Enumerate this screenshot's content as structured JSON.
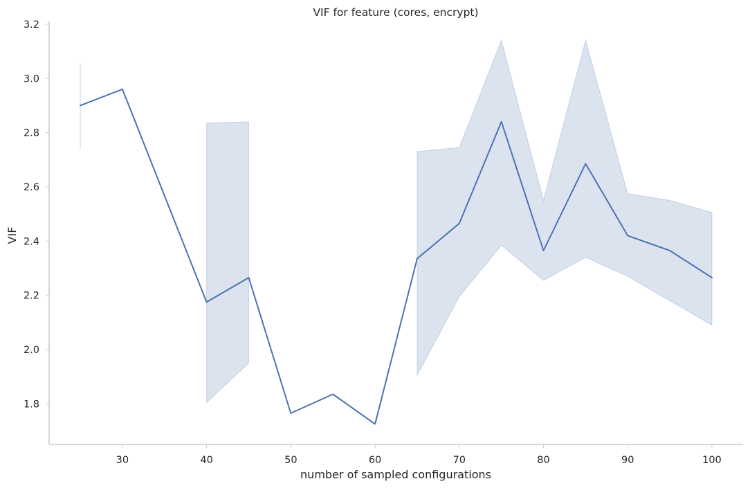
{
  "chart_data": {
    "type": "line",
    "title": "VIF for feature (cores, encrypt)",
    "xlabel": "number of sampled configurations",
    "ylabel": "VIF",
    "xlim": [
      21.3,
      103.7
    ],
    "ylim": [
      1.65,
      3.21
    ],
    "xticks": [
      30,
      40,
      50,
      60,
      70,
      80,
      90,
      100
    ],
    "xtick_labels": [
      "30",
      "40",
      "50",
      "60",
      "70",
      "80",
      "90",
      "100"
    ],
    "yticks": [
      1.8,
      2.0,
      2.2,
      2.4,
      2.6,
      2.8,
      3.0,
      3.2
    ],
    "ytick_labels": [
      "1.8",
      "2.0",
      "2.2",
      "2.4",
      "2.6",
      "2.8",
      "3.0",
      "3.2"
    ],
    "grid": false,
    "colors": {
      "line": "#4c72b0",
      "band": "#4c72b0"
    },
    "series": [
      {
        "x": [
          25,
          30,
          40,
          45,
          50,
          55,
          60,
          65,
          70,
          75,
          80,
          85,
          90,
          95,
          100
        ],
        "y": [
          2.9,
          2.96,
          2.175,
          2.265,
          1.765,
          1.835,
          1.725,
          2.335,
          2.465,
          2.84,
          2.365,
          2.685,
          2.42,
          2.365,
          2.265
        ],
        "ci": [
          {
            "x": 25,
            "low": 2.74,
            "high": 3.055
          },
          {
            "x": 40,
            "low": 1.805,
            "high": 2.835
          },
          {
            "x": 45,
            "low": 1.95,
            "high": 2.84
          },
          {
            "x": 65,
            "low": 1.905,
            "high": 2.73
          },
          {
            "x": 70,
            "low": 2.195,
            "high": 2.745
          },
          {
            "x": 75,
            "low": 2.385,
            "high": 3.14
          },
          {
            "x": 80,
            "low": 2.255,
            "high": 2.55
          },
          {
            "x": 85,
            "low": 2.34,
            "high": 3.14
          },
          {
            "x": 90,
            "low": 2.27,
            "high": 2.575
          },
          {
            "x": 95,
            "low": 2.18,
            "high": 2.55
          },
          {
            "x": 100,
            "low": 2.09,
            "high": 2.505
          }
        ]
      }
    ]
  }
}
